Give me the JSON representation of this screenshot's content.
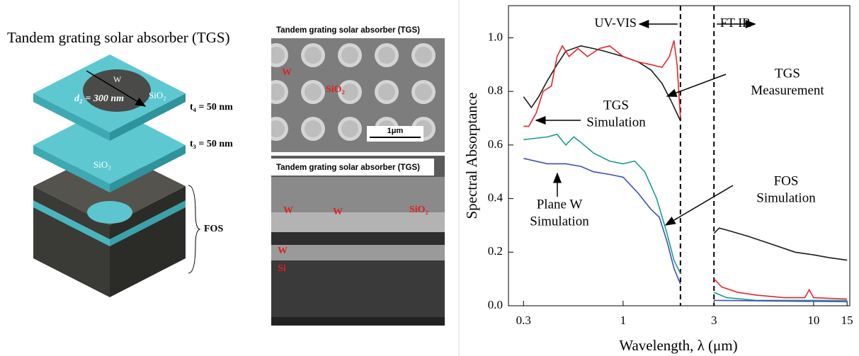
{
  "diagram": {
    "title": "Tandem grating solar absorber (TGS)",
    "labels": [
      "W",
      "d₂ = 300 nm",
      "SiO₂",
      "t₄ = 50 nm",
      "t₃ = 50 nm",
      "SiO₂",
      "FOS"
    ]
  },
  "sem_top": {
    "caption": "Tandem grating solar absorber (TGS)",
    "labels": [
      "W",
      "SiO₂"
    ],
    "scale": "1μm"
  },
  "sem_bottom": {
    "caption": "Tandem grating solar absorber (TGS)",
    "labels": [
      "W",
      "W",
      "SiO₂",
      "W",
      "Si"
    ]
  },
  "chart_data": {
    "type": "line",
    "xlabel": "Wavelength, λ (μm)",
    "ylabel": "Spectral Absorptance",
    "log_x": true,
    "xlim": [
      0.25,
      15.5
    ],
    "xticks": [
      0.3,
      1,
      3,
      10,
      15
    ],
    "ylim": [
      0,
      1.12
    ],
    "yticks": [
      {
        "value": 0,
        "label": "0.0"
      },
      {
        "value": 0.2,
        "label": "0.2"
      },
      {
        "value": 0.4,
        "label": "0.4"
      },
      {
        "value": 0.6,
        "label": "0.6"
      },
      {
        "value": 0.8,
        "label": "0.8"
      },
      {
        "value": 1,
        "label": "1.0"
      }
    ],
    "regions": [
      {
        "label": "UV-VIS",
        "x": 2
      },
      {
        "label": "FT-IR",
        "x": 3
      }
    ],
    "annotations": [
      [
        "TGS",
        "Measurement"
      ],
      [
        "TGS",
        "Simulation"
      ],
      [
        "FOS",
        "Simulation"
      ],
      [
        "Plane W",
        "Simulation"
      ]
    ],
    "series": [
      {
        "color": "#1a1a1a",
        "x": [
          0.3,
          0.33,
          0.36,
          0.4,
          0.45,
          0.5,
          0.6,
          0.7,
          0.8,
          1.0,
          1.2,
          1.4,
          1.6,
          1.8,
          2.0,
          2.5,
          3,
          3.2,
          3.6,
          4.5,
          6,
          8,
          10,
          12,
          15
        ],
        "values": [
          0.78,
          0.74,
          0.78,
          0.84,
          0.9,
          0.95,
          0.97,
          0.96,
          0.95,
          0.93,
          0.91,
          0.88,
          0.83,
          0.76,
          0.69,
          null,
          0.27,
          0.29,
          0.28,
          0.26,
          0.23,
          0.2,
          0.19,
          0.18,
          0.17
        ]
      },
      {
        "color": "#e8262b",
        "x": [
          0.3,
          0.32,
          0.35,
          0.38,
          0.42,
          0.45,
          0.48,
          0.52,
          0.58,
          0.65,
          0.75,
          0.85,
          1.0,
          1.2,
          1.4,
          1.6,
          1.75,
          1.85,
          1.92,
          2.0,
          2.5,
          3,
          3.3,
          4,
          5,
          7,
          9,
          9.5,
          10,
          15
        ],
        "values": [
          0.67,
          0.67,
          0.72,
          0.8,
          0.82,
          0.93,
          0.97,
          0.93,
          0.96,
          0.93,
          0.96,
          0.97,
          0.93,
          0.91,
          0.9,
          0.89,
          0.93,
          0.99,
          0.9,
          0.7,
          null,
          0.1,
          0.07,
          0.05,
          0.04,
          0.03,
          0.03,
          0.06,
          0.03,
          0.025
        ]
      },
      {
        "color": "#1a9a8f",
        "x": [
          0.3,
          0.4,
          0.45,
          0.5,
          0.55,
          0.6,
          0.7,
          0.85,
          1.0,
          1.15,
          1.3,
          1.5,
          1.7,
          1.85,
          2.0,
          2.5,
          3,
          3.5,
          5,
          15
        ],
        "values": [
          0.62,
          0.63,
          0.64,
          0.6,
          0.63,
          0.61,
          0.57,
          0.54,
          0.53,
          0.54,
          0.5,
          0.4,
          0.27,
          0.17,
          0.12,
          null,
          0.05,
          0.03,
          0.02,
          0.02
        ]
      },
      {
        "color": "#3b4fb8",
        "x": [
          0.3,
          0.4,
          0.5,
          0.6,
          0.7,
          0.85,
          1.0,
          1.2,
          1.4,
          1.55,
          1.7,
          1.85,
          2.0,
          2.5,
          3,
          15
        ],
        "values": [
          0.55,
          0.53,
          0.53,
          0.52,
          0.5,
          0.49,
          0.48,
          0.42,
          0.36,
          0.33,
          0.24,
          0.14,
          0.08,
          null,
          0.02,
          0.015
        ]
      }
    ]
  }
}
